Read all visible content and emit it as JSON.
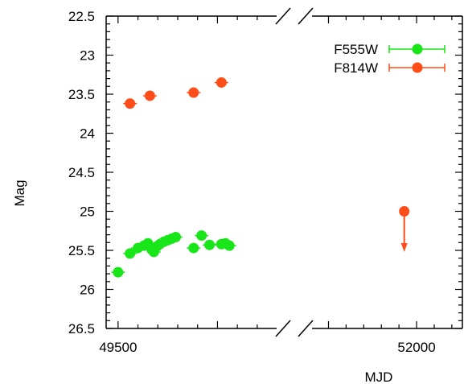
{
  "chart_data": {
    "type": "scatter",
    "title": "",
    "xlabel": "MJD",
    "ylabel": "Mag",
    "y_inverted": true,
    "ylim": [
      26.5,
      22.5
    ],
    "broken_x_axis": true,
    "x_segments": [
      {
        "range": [
          49440,
          50330
        ],
        "ticks": [
          49500
        ]
      },
      {
        "range": [
          51370,
          52260
        ],
        "ticks": [
          52000
        ]
      }
    ],
    "y_ticks": [
      22.5,
      23,
      23.5,
      24,
      24.5,
      25,
      25.5,
      26,
      26.5
    ],
    "legend_position": "top-right",
    "series": [
      {
        "name": "F555W",
        "color": "#19e619",
        "points": [
          {
            "x": 49500,
            "y": 25.78
          },
          {
            "x": 49560,
            "y": 25.54
          },
          {
            "x": 49600,
            "y": 25.47
          },
          {
            "x": 49630,
            "y": 25.44
          },
          {
            "x": 49650,
            "y": 25.41
          },
          {
            "x": 49670,
            "y": 25.49
          },
          {
            "x": 49680,
            "y": 25.52
          },
          {
            "x": 49695,
            "y": 25.45
          },
          {
            "x": 49710,
            "y": 25.42
          },
          {
            "x": 49730,
            "y": 25.39
          },
          {
            "x": 49750,
            "y": 25.37
          },
          {
            "x": 49770,
            "y": 25.35
          },
          {
            "x": 49790,
            "y": 25.33
          },
          {
            "x": 49880,
            "y": 25.47
          },
          {
            "x": 49920,
            "y": 25.31
          },
          {
            "x": 49960,
            "y": 25.43
          },
          {
            "x": 50020,
            "y": 25.42
          },
          {
            "x": 50040,
            "y": 25.41
          },
          {
            "x": 50060,
            "y": 25.44
          }
        ]
      },
      {
        "name": "F814W",
        "color": "#ff4d19",
        "points": [
          {
            "x": 49560,
            "y": 23.62
          },
          {
            "x": 49660,
            "y": 23.52
          },
          {
            "x": 49880,
            "y": 23.48
          },
          {
            "x": 50020,
            "y": 23.35
          }
        ],
        "upper_limits": [
          {
            "x": 51930,
            "y": 25.0,
            "arrow_to": 25.5
          }
        ]
      }
    ]
  }
}
